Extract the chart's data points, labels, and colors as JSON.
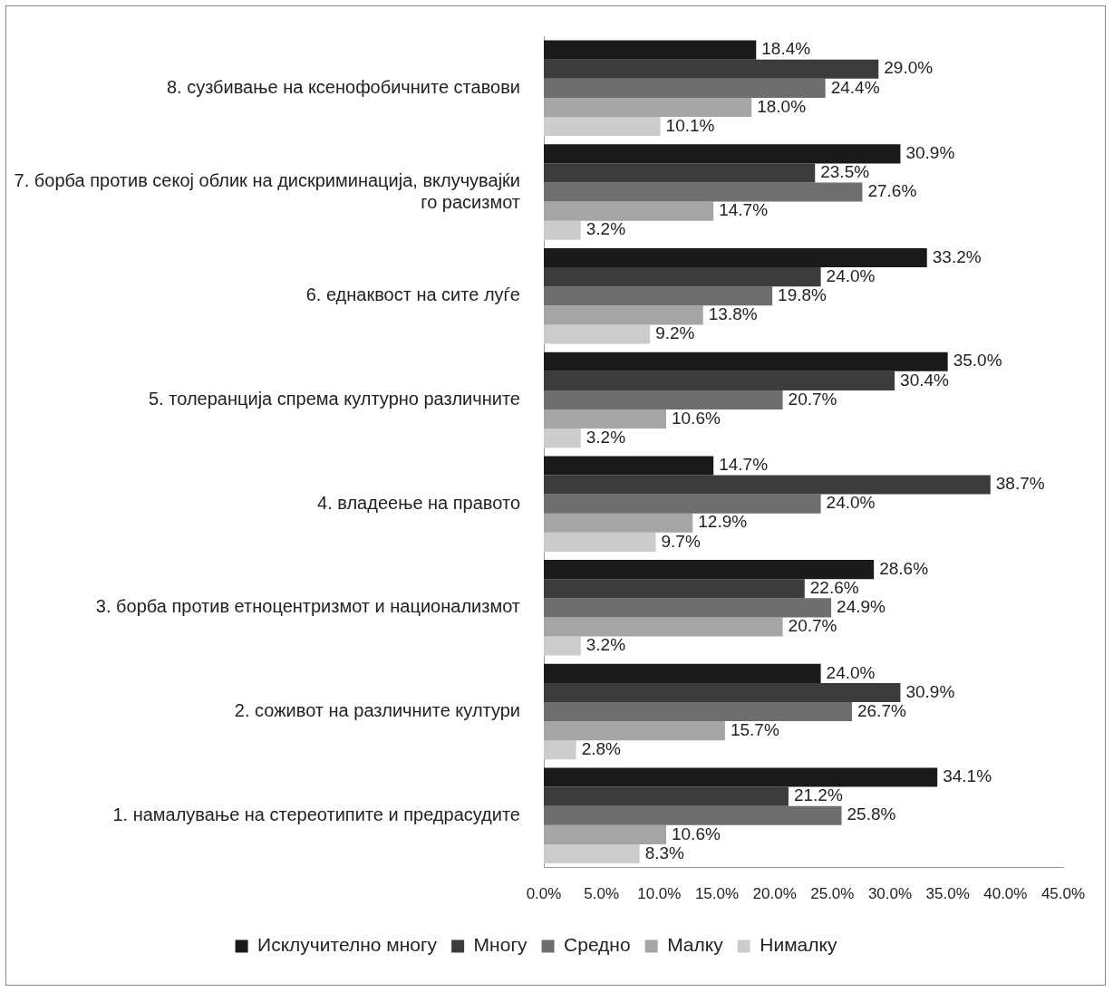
{
  "chart_data": {
    "type": "bar",
    "orientation": "horizontal",
    "categories": [
      "8. сузбивање на ксенофобичните ставови",
      "7. борба против секој облик на дискриминација, вклучувајќи го расизмот",
      "6. еднаквост на сите луѓе",
      "5. толеранција спрема културно различните",
      "4. владеење на правото",
      "3. борба против етноцентризмот и национализмот",
      "2. соживот на различните култури",
      "1. намалување на стереотипите и предрасудите"
    ],
    "series": [
      {
        "name": "Исклучително многу",
        "color": "#1a1a1a",
        "values": [
          18.4,
          30.9,
          33.2,
          35.0,
          14.7,
          28.6,
          24.0,
          34.1
        ],
        "value_labels": [
          "18.4%",
          "30.9%",
          "33.2%",
          "35.0%",
          "14.7%",
          "28.6%",
          "24.0%",
          "34.1%"
        ]
      },
      {
        "name": "Многу",
        "color": "#3c3c3c",
        "values": [
          29.0,
          23.5,
          24.0,
          30.4,
          38.7,
          22.6,
          30.9,
          21.2
        ],
        "value_labels": [
          "29.0%",
          "23.5%",
          "24.0%",
          "30.4%",
          "38.7%",
          "22.6%",
          "30.9%",
          "21.2%"
        ]
      },
      {
        "name": "Средно",
        "color": "#6e6e6e",
        "values": [
          24.4,
          27.6,
          19.8,
          20.7,
          24.0,
          24.9,
          26.7,
          25.8
        ],
        "value_labels": [
          "24.4%",
          "27.6%",
          "19.8%",
          "20.7%",
          "24.0%",
          "24.9%",
          "26.7%",
          "25.8%"
        ]
      },
      {
        "name": "Малку",
        "color": "#a5a5a5",
        "values": [
          18.0,
          14.7,
          13.8,
          10.6,
          12.9,
          20.7,
          15.7,
          10.6
        ],
        "value_labels": [
          "18.0%",
          "14.7%",
          "13.8%",
          "10.6%",
          "12.9%",
          "20.7%",
          "15.7%",
          "10.6%"
        ]
      },
      {
        "name": "Нималку",
        "color": "#cccccc",
        "values": [
          10.1,
          3.2,
          9.2,
          3.2,
          9.7,
          3.2,
          2.8,
          8.3
        ],
        "value_labels": [
          "10.1%",
          "3.2%",
          "9.2%",
          "3.2%",
          "9.7%",
          "3.2%",
          "2.8%",
          "8.3%"
        ]
      }
    ],
    "xlim": [
      0,
      45
    ],
    "xticks": [
      {
        "value": 0,
        "label": "0.0%"
      },
      {
        "value": 5,
        "label": "5.0%"
      },
      {
        "value": 10,
        "label": "10.0%"
      },
      {
        "value": 15,
        "label": "15.0%"
      },
      {
        "value": 20,
        "label": "20.0%"
      },
      {
        "value": 25,
        "label": "25.0%"
      },
      {
        "value": 30,
        "label": "30.0%"
      },
      {
        "value": 35,
        "label": "35.0%"
      },
      {
        "value": 40,
        "label": "40.0%"
      },
      {
        "value": 45,
        "label": "45.0%"
      }
    ],
    "grid": false,
    "legend": "bottom"
  }
}
